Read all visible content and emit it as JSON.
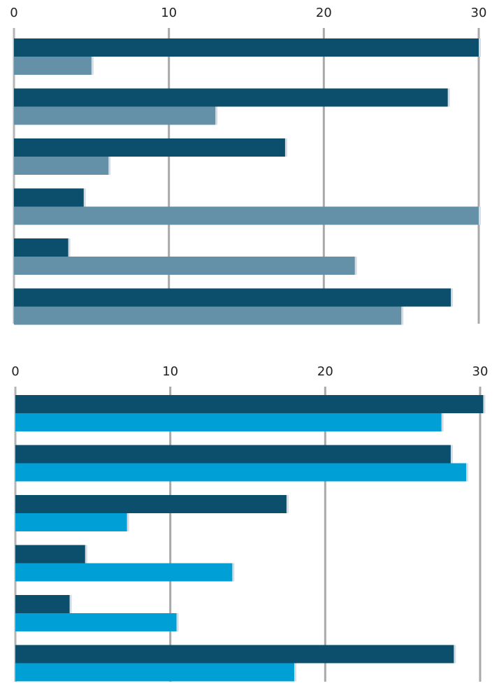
{
  "chart_data": [
    {
      "type": "bar",
      "orientation": "horizontal",
      "title": "",
      "xlabel": "",
      "ylabel": "",
      "xlim": [
        0,
        30
      ],
      "tick_labels": [
        "0",
        "10",
        "20",
        "30"
      ],
      "grid": true,
      "categories": [
        "",
        "",
        "",
        "",
        "",
        ""
      ],
      "colors": [
        "#0b4f6c",
        "#6591a8"
      ],
      "series": [
        {
          "values": [
            30,
            28,
            17.5,
            4.5,
            3.5,
            28.2
          ]
        },
        {
          "values": [
            5,
            13,
            6.1,
            30,
            22,
            25
          ]
        }
      ]
    },
    {
      "type": "bar",
      "orientation": "horizontal",
      "title": "",
      "xlabel": "",
      "ylabel": "",
      "xlim": [
        0,
        30
      ],
      "tick_labels": [
        "0",
        "10",
        "20",
        "30"
      ],
      "grid": true,
      "categories": [
        "",
        "",
        "",
        "",
        "",
        ""
      ],
      "colors": [
        "#0b4f6c",
        "#00a0d6"
      ],
      "series": [
        {
          "values": [
            30.2,
            28.1,
            17.5,
            4.5,
            3.5,
            28.3
          ]
        },
        {
          "values": [
            27.5,
            29.1,
            7.2,
            14,
            10.4,
            18
          ]
        }
      ]
    }
  ]
}
